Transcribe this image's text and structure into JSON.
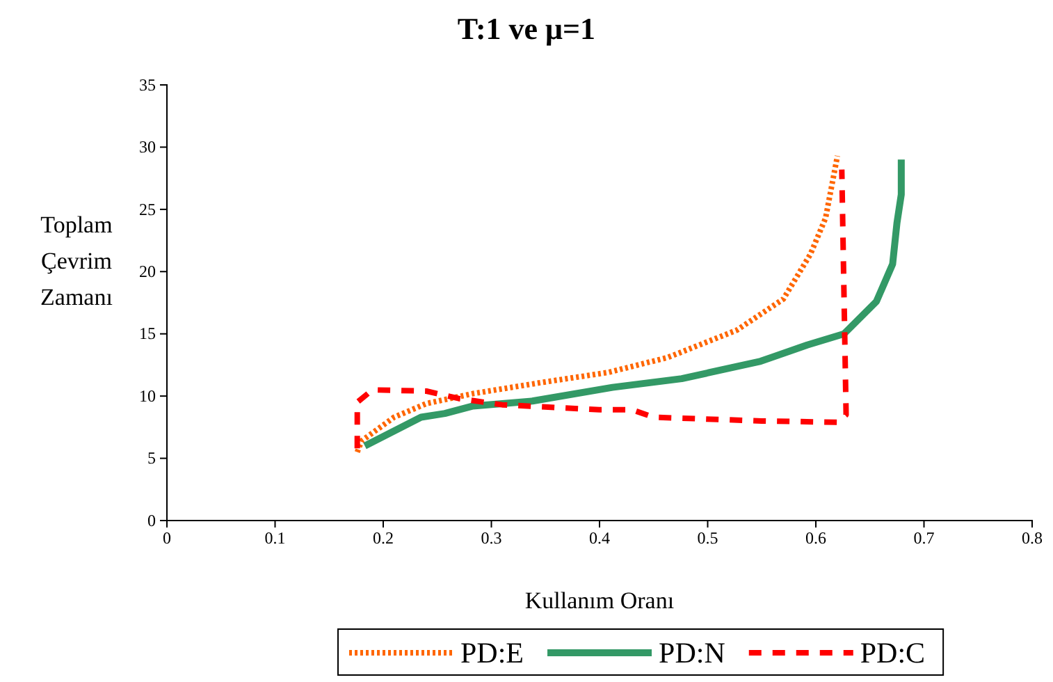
{
  "chart_data": {
    "type": "line",
    "title": "T:1 ve μ=1",
    "xlabel": "Kullanım Oranı",
    "ylabel": "Toplam Çevrim Zamanı",
    "xlim": [
      0,
      0.8
    ],
    "xticks": [
      0,
      0.1,
      0.2,
      0.3,
      0.4,
      0.5,
      0.6,
      0.7,
      0.8
    ],
    "ylim": [
      0,
      35
    ],
    "yticks": [
      0,
      5,
      10,
      15,
      20,
      25,
      30,
      35
    ],
    "grid": false,
    "legend": "bottom",
    "marker": "none",
    "series": [
      {
        "name": "PD:E",
        "color": "#ff6600",
        "line_style": "dotted",
        "x": [
          0.176,
          0.18,
          0.21,
          0.24,
          0.283,
          0.347,
          0.408,
          0.463,
          0.527,
          0.57,
          0.595,
          0.609,
          0.62
        ],
        "values": [
          5.5,
          6.4,
          8.3,
          9.4,
          10.2,
          11.1,
          11.9,
          13.1,
          15.3,
          17.8,
          21.4,
          24.3,
          29.3
        ]
      },
      {
        "name": "PD:N",
        "color": "#339966",
        "line_style": "solid",
        "x": [
          0.183,
          0.235,
          0.257,
          0.283,
          0.338,
          0.412,
          0.476,
          0.549,
          0.592,
          0.626,
          0.656,
          0.671,
          0.675,
          0.679,
          0.679
        ],
        "values": [
          6.0,
          8.3,
          8.6,
          9.2,
          9.6,
          10.7,
          11.4,
          12.8,
          14.1,
          15.0,
          17.6,
          20.6,
          23.9,
          26.2,
          29.0
        ]
      },
      {
        "name": "PD:C",
        "color": "#ff0000",
        "line_style": "dashed",
        "x": [
          0.176,
          0.176,
          0.19,
          0.24,
          0.27,
          0.31,
          0.4,
          0.43,
          0.45,
          0.55,
          0.62,
          0.628,
          0.624
        ],
        "values": [
          5.8,
          9.5,
          10.5,
          10.4,
          9.8,
          9.3,
          8.9,
          8.9,
          8.3,
          8.0,
          7.9,
          8.5,
          28.2
        ]
      }
    ]
  }
}
